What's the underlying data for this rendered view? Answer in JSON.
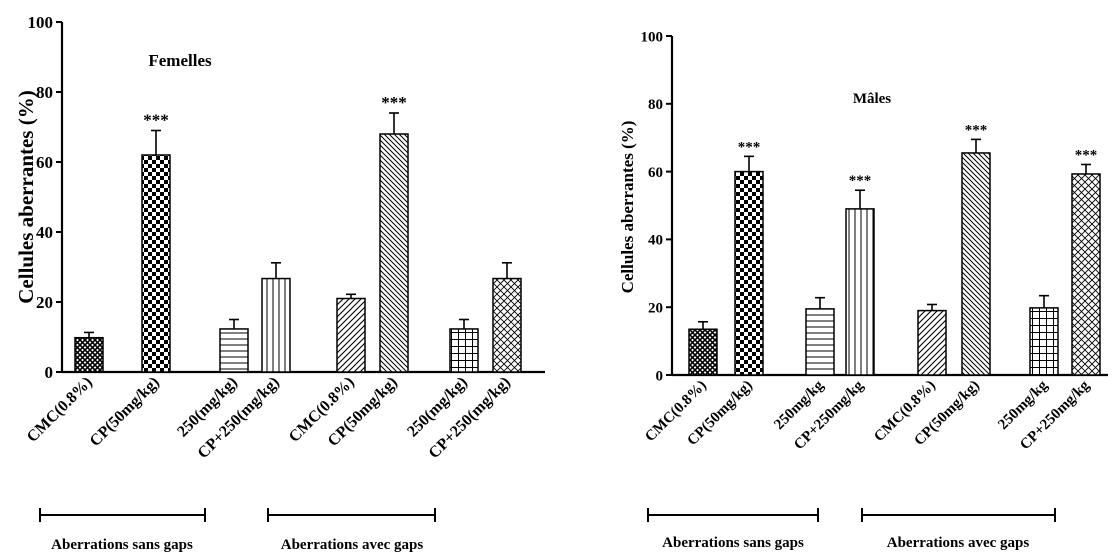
{
  "chart_data": [
    {
      "type": "bar",
      "title": "Femelles",
      "ylabel": "Cellules aberrantes (%)",
      "xlabel": "",
      "ylim": [
        0,
        100
      ],
      "yticks": [
        0,
        20,
        40,
        60,
        80,
        100
      ],
      "categories": [
        "CMC(0.8%)",
        "CP(50mg/kg)",
        "250(mg/kg)",
        "CP+250(mg/kg)",
        "CMC(0.8%)",
        "CP(50mg/kg)",
        "250(mg/kg)",
        "CP+250(mg/kg)"
      ],
      "values": [
        9.8,
        62,
        12.3,
        26.7,
        21,
        68,
        12.3,
        26.7
      ],
      "errors": [
        1.5,
        7,
        2.7,
        4.5,
        1.2,
        6,
        2.7,
        4.5
      ],
      "patterns": [
        "crosshatch",
        "checker",
        "hlines",
        "vlines",
        "diag-up",
        "diag-down",
        "grid",
        "diag-cross"
      ],
      "significance": [
        "",
        "***",
        "",
        "",
        "",
        "***",
        "",
        ""
      ],
      "groups": [
        {
          "label": "Aberrations sans gaps",
          "from": 0,
          "to": 3
        },
        {
          "label": "Aberrations avec gaps",
          "from": 4,
          "to": 7
        }
      ],
      "grid": false,
      "legend": "none"
    },
    {
      "type": "bar",
      "title": "Mâles",
      "ylabel": "Cellules aberrantes (%)",
      "xlabel": "",
      "ylim": [
        0,
        100
      ],
      "yticks": [
        0,
        20,
        40,
        60,
        80,
        100
      ],
      "categories": [
        "CMC(0.8%)",
        "CP(50mg/kg)",
        "250mg/kg",
        "CP+250mg/kg",
        "CMC(0.8%)",
        "CP(50mg/kg)",
        "250mg/kg",
        "CP+250mg/kg"
      ],
      "values": [
        13.5,
        60,
        19.5,
        49,
        19,
        65.5,
        19.8,
        59.3
      ],
      "errors": [
        2.2,
        4.5,
        3.3,
        5.5,
        1.8,
        4,
        3.6,
        2.8
      ],
      "patterns": [
        "crosshatch",
        "checker",
        "hlines",
        "vlines",
        "diag-up",
        "diag-down",
        "grid",
        "diag-cross"
      ],
      "significance": [
        "",
        "***",
        "",
        "***",
        "",
        "***",
        "",
        "***"
      ],
      "groups": [
        {
          "label": "Aberrations sans gaps",
          "from": 0,
          "to": 3
        },
        {
          "label": "Aberrations avec gaps",
          "from": 4,
          "to": 7
        }
      ],
      "grid": false,
      "legend": "none"
    }
  ]
}
